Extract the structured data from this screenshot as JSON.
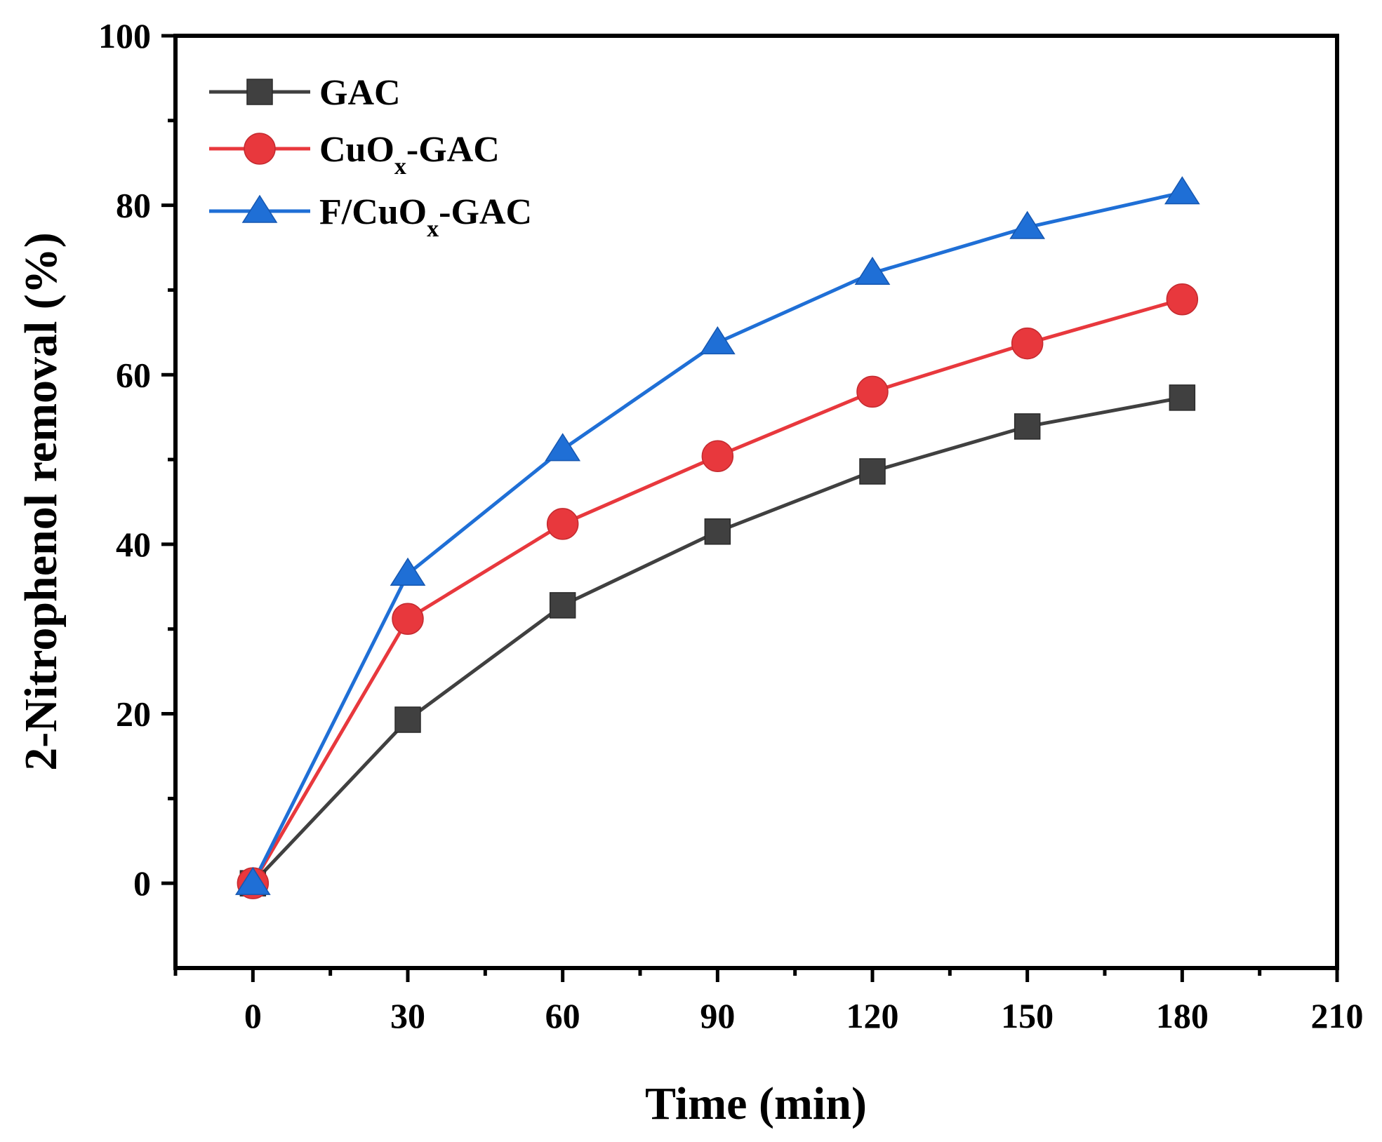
{
  "chart_data": {
    "type": "line",
    "title": "",
    "xlabel": "Time (min)",
    "ylabel": "2-Nitrophenol removal (%)",
    "xlim": [
      -15,
      210
    ],
    "ylim": [
      -10,
      100
    ],
    "xticks": [
      0,
      30,
      60,
      90,
      120,
      150,
      180,
      210
    ],
    "yticks": [
      0,
      20,
      40,
      60,
      80,
      100
    ],
    "x": [
      0,
      30,
      60,
      90,
      120,
      150,
      180
    ],
    "legend_position": "top-left",
    "series": [
      {
        "name": "GAC",
        "label_main": "GAC",
        "label_sub": "",
        "label_tail": "",
        "color": "#404040",
        "marker": "square",
        "values": [
          0,
          19.3,
          32.8,
          41.5,
          48.6,
          53.9,
          57.3
        ]
      },
      {
        "name": "CuOx-GAC",
        "label_main": "CuO",
        "label_sub": "x",
        "label_tail": "-GAC",
        "color": "#e8383d",
        "marker": "circle",
        "values": [
          0,
          31.2,
          42.4,
          50.4,
          58.0,
          63.7,
          68.9
        ]
      },
      {
        "name": "F/CuOx-GAC",
        "label_main": "F/CuO",
        "label_sub": "x",
        "label_tail": "-GAC",
        "color": "#1f6fd6",
        "marker": "triangle",
        "values": [
          0,
          36.5,
          51.2,
          63.8,
          72.0,
          77.4,
          81.5
        ]
      }
    ]
  }
}
